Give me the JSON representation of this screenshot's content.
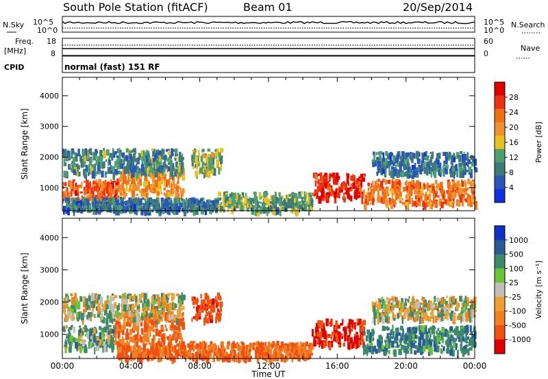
{
  "header": {
    "station": "South Pole Station (fitACF)",
    "beam": "Beam 01",
    "date": "20/Sep/2014"
  },
  "top_panels": {
    "nsky_label": "N.Sky",
    "nsearch_label": "N.Search",
    "noise_ticks_left": [
      "10^5",
      "10^0"
    ],
    "noise_ticks_right": [
      "10^5",
      "10^0"
    ],
    "freq_label": "Freq.",
    "freq_unit": "[MHz]",
    "freq_ticks": [
      "18",
      "8"
    ],
    "nave_label": "Nave",
    "nave_ticks": [
      "60",
      "0"
    ],
    "cpid_label": "CPID",
    "cpid_value": "normal (fast) 151 RF"
  },
  "colors": {
    "power_scale": [
      "#1030e0",
      "#2a56b8",
      "#3f7a76",
      "#4fa070",
      "#e8c020",
      "#f09030",
      "#f07018",
      "#f03010",
      "#e00000"
    ],
    "velocity_scale": [
      "#1030c8",
      "#2a5a9a",
      "#3d8a6a",
      "#68c438",
      "#c0c0b8",
      "#f0a030",
      "#f08020",
      "#f05010",
      "#e00000"
    ]
  },
  "chart_data": [
    {
      "type": "heatmap",
      "title": "Power",
      "xlabel": "",
      "ylabel": "Slant Range [km]",
      "x_ticks": [
        "00:00",
        "04:00",
        "08:00",
        "12:00",
        "16:00",
        "20:00",
        "00:00"
      ],
      "y_ticks": [
        "1000",
        "2000",
        "3000",
        "4000"
      ],
      "ylim": [
        250,
        4600
      ],
      "colorbar_label": "Power [dB]",
      "colorbar_ticks": [
        "4",
        "8",
        "12",
        "16",
        "20",
        "24",
        "28"
      ],
      "colorbar_range": [
        0,
        32
      ],
      "regions": [
        {
          "t0": 0.0,
          "t1": 3.2,
          "r0": 600,
          "r1": 1300,
          "v": 24
        },
        {
          "t0": 3.2,
          "t1": 7.0,
          "r0": 800,
          "r1": 1700,
          "v": 20
        },
        {
          "t0": 0.0,
          "t1": 7.0,
          "r0": 1500,
          "r1": 2300,
          "v": 10
        },
        {
          "t0": 7.5,
          "t1": 9.2,
          "r0": 1500,
          "r1": 2300,
          "v": 14
        },
        {
          "t0": 0.0,
          "t1": 9.0,
          "r0": 300,
          "r1": 700,
          "v": 8
        },
        {
          "t0": 9.0,
          "t1": 14.5,
          "r0": 300,
          "r1": 900,
          "v": 12
        },
        {
          "t0": 14.5,
          "t1": 17.5,
          "r0": 700,
          "r1": 1500,
          "v": 28
        },
        {
          "t0": 17.5,
          "t1": 24.0,
          "r0": 500,
          "r1": 1300,
          "v": 22
        },
        {
          "t0": 18.0,
          "t1": 24.0,
          "r0": 1500,
          "r1": 2200,
          "v": 8
        }
      ]
    },
    {
      "type": "heatmap",
      "title": "Velocity",
      "xlabel": "Time UT",
      "ylabel": "Slant Range [km]",
      "x_ticks": [
        "00:00",
        "04:00",
        "08:00",
        "12:00",
        "16:00",
        "20:00",
        "00:00"
      ],
      "y_ticks": [
        "1000",
        "2000",
        "3000",
        "4000"
      ],
      "ylim": [
        250,
        4600
      ],
      "colorbar_label": "Velocity [m s⁻¹]",
      "colorbar_ticks": [
        "1000",
        "500",
        "100",
        "25",
        "-25",
        "-100",
        "-500",
        "-1000"
      ],
      "regions": [
        {
          "t0": 0.0,
          "t1": 3.0,
          "r0": 600,
          "r1": 1300,
          "v": 100
        },
        {
          "t0": 3.0,
          "t1": 7.0,
          "r0": 800,
          "r1": 1700,
          "v": -300
        },
        {
          "t0": 0.0,
          "t1": 7.0,
          "r0": 1500,
          "r1": 2300,
          "v": 0
        },
        {
          "t0": 7.5,
          "t1": 9.2,
          "r0": 1500,
          "r1": 2300,
          "v": -600
        },
        {
          "t0": 3.0,
          "t1": 14.5,
          "r0": 300,
          "r1": 800,
          "v": -300
        },
        {
          "t0": 14.5,
          "t1": 17.5,
          "r0": 700,
          "r1": 1500,
          "v": -700
        },
        {
          "t0": 17.5,
          "t1": 24.0,
          "r0": 500,
          "r1": 1300,
          "v": 200
        },
        {
          "t0": 18.0,
          "t1": 24.0,
          "r0": 1500,
          "r1": 2200,
          "v": 0
        }
      ]
    }
  ]
}
